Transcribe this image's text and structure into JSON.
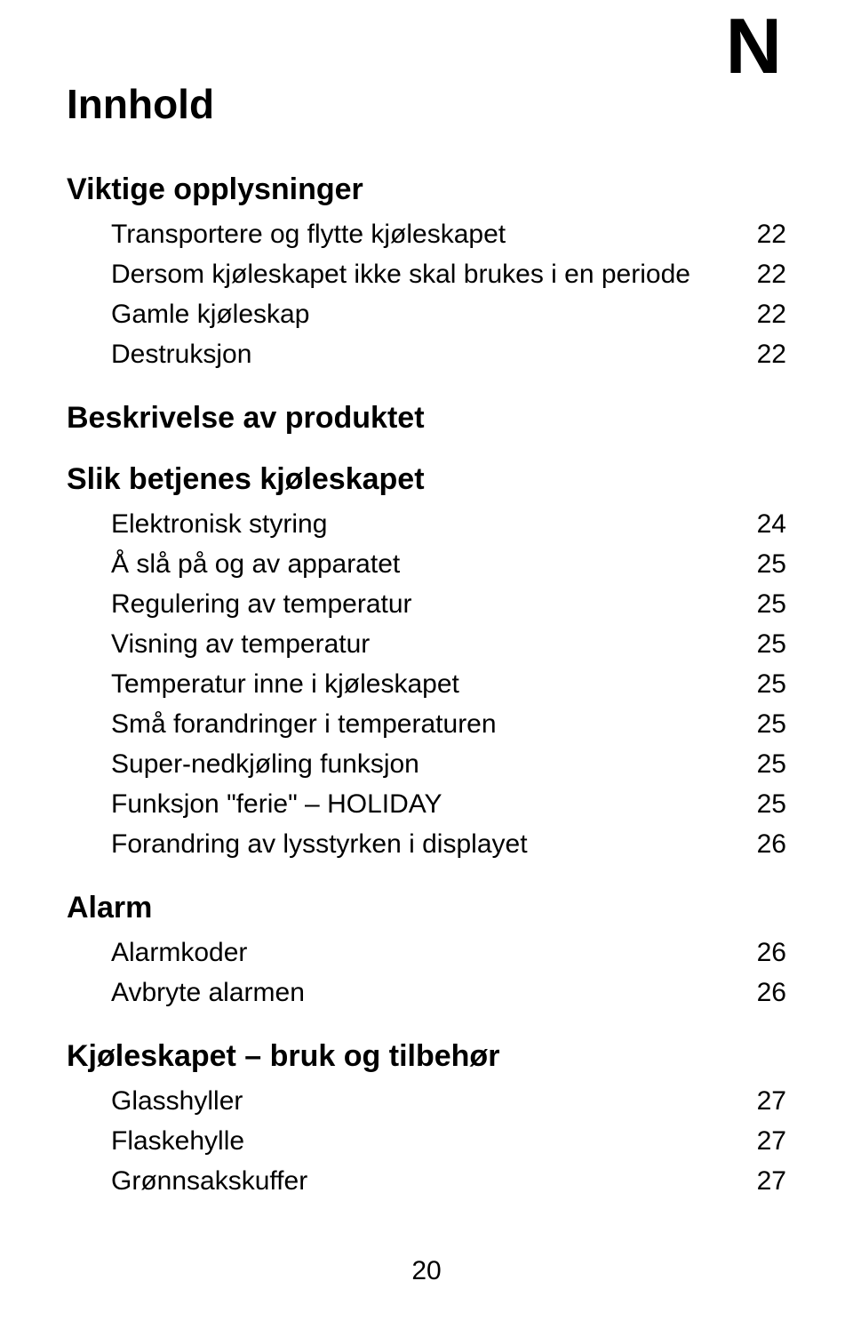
{
  "corner_letter": "N",
  "title": "Innhold",
  "page_number": "20",
  "sections": [
    {
      "heading": "Viktige opplysninger",
      "entries": [
        {
          "label": "Transportere og flytte kjøleskapet",
          "page": "22"
        },
        {
          "label": "Dersom kjøleskapet ikke skal brukes i en periode",
          "page": "22"
        },
        {
          "label": "Gamle kjøleskap",
          "page": "22"
        },
        {
          "label": "Destruksjon",
          "page": "22"
        }
      ]
    },
    {
      "heading": "Beskrivelse av produktet",
      "entries": []
    },
    {
      "heading": "Slik betjenes kjøleskapet",
      "entries": [
        {
          "label": "Elektronisk styring",
          "page": "24"
        },
        {
          "label": "Å slå på og av apparatet",
          "page": "25"
        },
        {
          "label": "Regulering av temperatur",
          "page": "25"
        },
        {
          "label": "Visning av temperatur",
          "page": "25"
        },
        {
          "label": "Temperatur inne i kjøleskapet",
          "page": "25"
        },
        {
          "label": "Små forandringer i temperaturen",
          "page": "25"
        },
        {
          "label": "Super-nedkjøling funksjon",
          "page": "25"
        },
        {
          "label": "Funksjon \"ferie\" – HOLIDAY",
          "page": "25"
        },
        {
          "label": "Forandring av lysstyrken i displayet",
          "page": "26"
        }
      ]
    },
    {
      "heading": "Alarm",
      "entries": [
        {
          "label": "Alarmkoder",
          "page": "26"
        },
        {
          "label": "Avbryte alarmen",
          "page": "26"
        }
      ]
    },
    {
      "heading": "Kjøleskapet – bruk og tilbehør",
      "entries": [
        {
          "label": "Glasshyller",
          "page": "27"
        },
        {
          "label": "Flaskehylle",
          "page": "27"
        },
        {
          "label": "Grønnsakskuffer",
          "page": "27"
        }
      ]
    }
  ]
}
